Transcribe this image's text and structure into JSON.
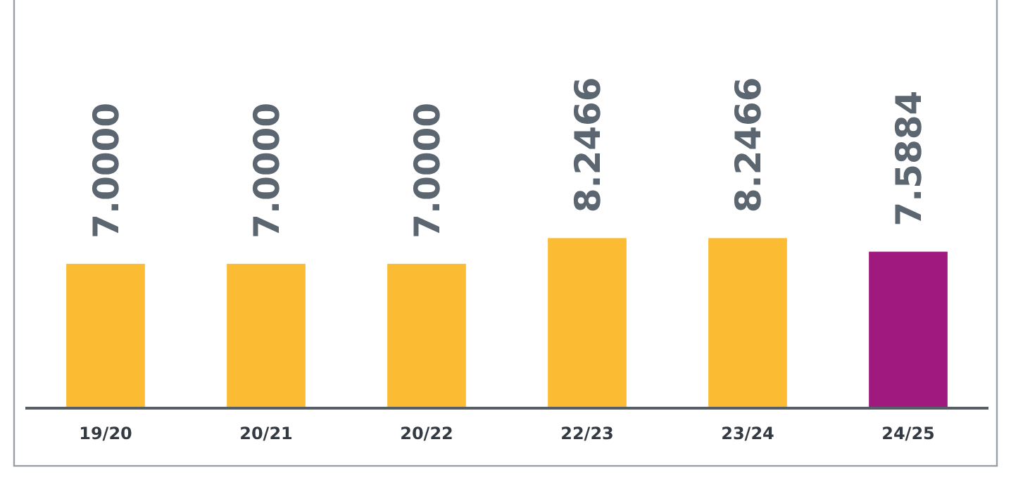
{
  "chart_data": {
    "type": "bar",
    "categories": [
      "19/20",
      "20/21",
      "20/22",
      "22/23",
      "23/24",
      "24/25"
    ],
    "values": [
      7.0,
      7.0,
      7.0,
      8.2466,
      8.2466,
      7.5884
    ],
    "value_labels": [
      "7.0000",
      "7.0000",
      "7.0000",
      "8.2466",
      "8.2466",
      "7.5884"
    ],
    "colors": [
      "#fbbc34",
      "#fbbc34",
      "#fbbc34",
      "#fbbc34",
      "#fbbc34",
      "#a0197f"
    ]
  }
}
